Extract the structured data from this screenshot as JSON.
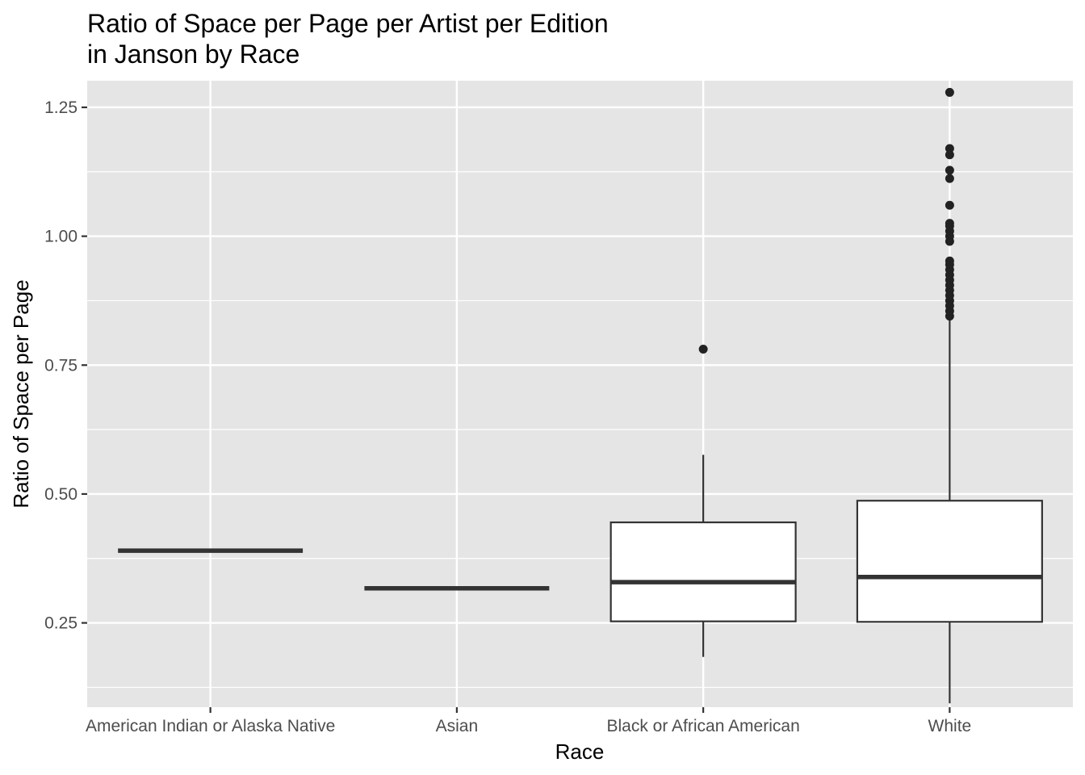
{
  "chart_data": {
    "type": "boxplot",
    "title_lines": [
      "Ratio of Space per Page per Artist per Edition",
      "in Janson by Race"
    ],
    "xlabel": "Race",
    "ylabel": "Ratio of Space per Page",
    "ylim": [
      0.0865,
      1.3016
    ],
    "yticks": [
      "0.25",
      "0.50",
      "0.75",
      "1.00",
      "1.25"
    ],
    "ytick_values": [
      0.25,
      0.5,
      0.75,
      1.0,
      1.25
    ],
    "grid": true,
    "colors": {
      "panel": "#e5e5e5",
      "grid": "#ffffff",
      "box_fill": "#ffffff",
      "stroke": "#333333",
      "point": "#222222"
    },
    "categories": [
      "American Indian or Alaska Native",
      "Asian",
      "Black or African American",
      "White"
    ],
    "boxes": [
      {
        "category": "American Indian or Alaska Native",
        "q1": 0.39,
        "median": 0.39,
        "q3": 0.39,
        "whisker_low": 0.39,
        "whisker_high": 0.39,
        "outliers": []
      },
      {
        "category": "Asian",
        "q1": 0.317,
        "median": 0.317,
        "q3": 0.317,
        "whisker_low": 0.317,
        "whisker_high": 0.317,
        "outliers": []
      },
      {
        "category": "Black or African American",
        "q1": 0.253,
        "median": 0.329,
        "q3": 0.445,
        "whisker_low": 0.184,
        "whisker_high": 0.576,
        "outliers": [
          0.781
        ]
      },
      {
        "category": "White",
        "q1": 0.252,
        "median": 0.339,
        "q3": 0.487,
        "whisker_low": 0.094,
        "whisker_high": 0.837,
        "outliers": [
          0.845,
          0.855,
          0.865,
          0.875,
          0.885,
          0.895,
          0.905,
          0.915,
          0.925,
          0.935,
          0.945,
          0.952,
          0.99,
          1.0,
          1.01,
          1.02,
          1.025,
          1.06,
          1.112,
          1.128,
          1.158,
          1.17,
          1.279
        ]
      }
    ]
  }
}
